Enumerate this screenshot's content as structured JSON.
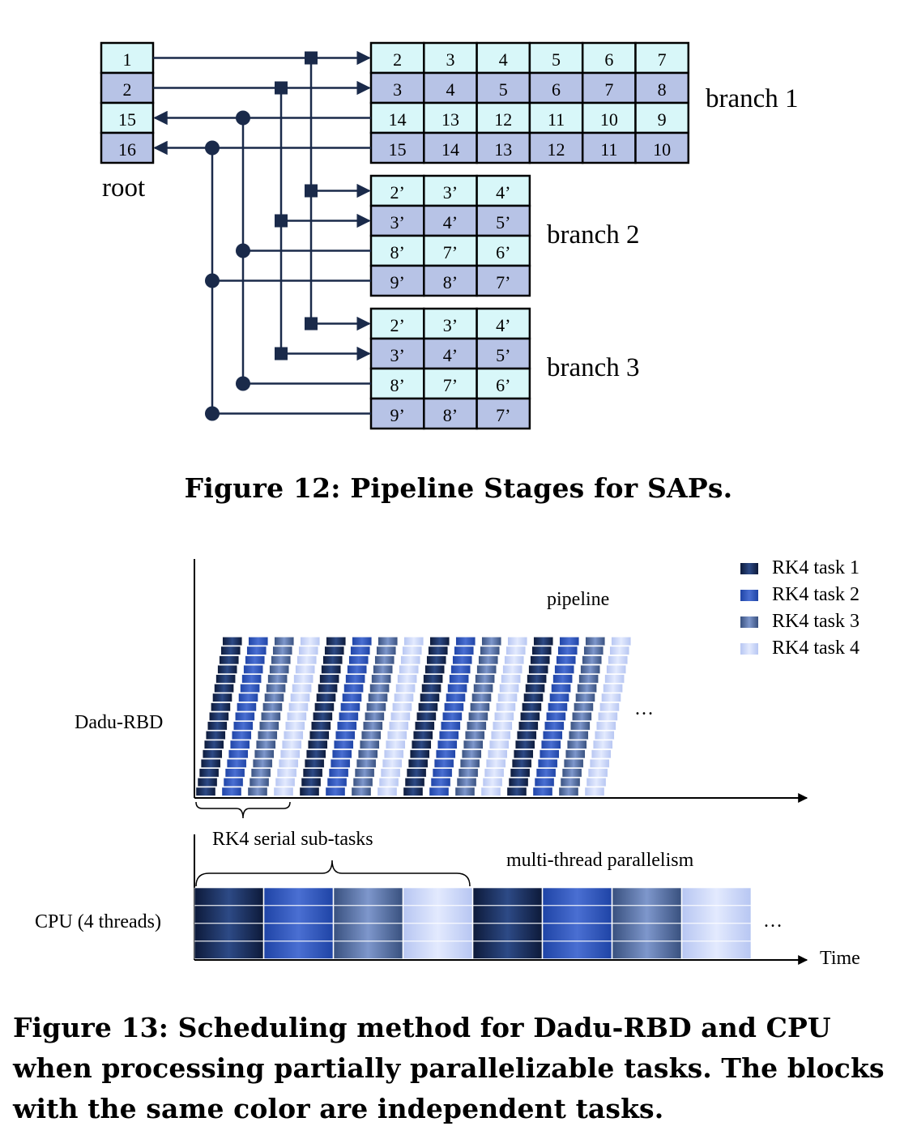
{
  "figure12": {
    "caption": "Figure 12: Pipeline Stages for SAPs.",
    "root_label": "root",
    "root_cells": [
      "1",
      "2",
      "15",
      "16"
    ],
    "branches": [
      {
        "label": "branch 1",
        "rows": [
          [
            "2",
            "3",
            "4",
            "5",
            "6",
            "7"
          ],
          [
            "3",
            "4",
            "5",
            "6",
            "7",
            "8"
          ],
          [
            "14",
            "13",
            "12",
            "11",
            "10",
            "9"
          ],
          [
            "15",
            "14",
            "13",
            "12",
            "11",
            "10"
          ]
        ]
      },
      {
        "label": "branch 2",
        "rows": [
          [
            "2’",
            "3’",
            "4’"
          ],
          [
            "3’",
            "4’",
            "5’"
          ],
          [
            "8’",
            "7’",
            "6’"
          ],
          [
            "9’",
            "8’",
            "7’"
          ]
        ]
      },
      {
        "label": "branch 3",
        "rows": [
          [
            "2’",
            "3’",
            "4’"
          ],
          [
            "3’",
            "4’",
            "5’"
          ],
          [
            "8’",
            "7’",
            "6’"
          ],
          [
            "9’",
            "8’",
            "7’"
          ]
        ]
      }
    ],
    "colors": {
      "light_row": "#d8f7f9",
      "dark_row": "#b7c3e6",
      "line": "#1a2a4a"
    }
  },
  "figure13": {
    "caption": "Figure 13: Scheduling method for Dadu-RBD and CPU when processing partially parallelizable tasks. The blocks with the same color are independent tasks.",
    "legend": [
      {
        "label": "RK4 task 1",
        "color": "#1b2c5c"
      },
      {
        "label": "RK4 task 2",
        "color": "#2a50b8"
      },
      {
        "label": "RK4 task 3",
        "color": "#5a77b5"
      },
      {
        "label": "RK4 task 4",
        "color": "#ccd7f8"
      }
    ],
    "labels": {
      "pipeline": "pipeline",
      "dadu": "Dadu-RBD",
      "cpu": "CPU (4 threads)",
      "serial": "RK4 serial sub-tasks",
      "multithread": "multi-thread parallelism",
      "time": "Time",
      "ellipsis_top": "…",
      "ellipsis_bottom": "…"
    }
  }
}
